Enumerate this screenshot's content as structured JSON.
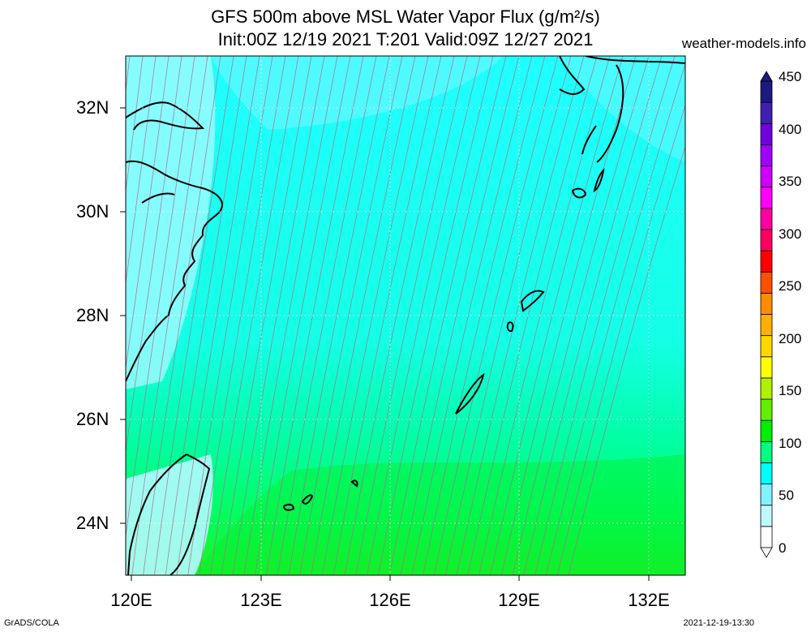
{
  "title": {
    "line1": "GFS 500m above MSL Water Vapor Flux (g/m²/s)",
    "line2": "Init:00Z 12/19 2021 T:201 Valid:09Z 12/27 2021"
  },
  "site": "weather-models.info",
  "axes": {
    "lat_labels": [
      "32N",
      "30N",
      "28N",
      "26N",
      "24N"
    ],
    "lon_labels": [
      "120E",
      "123E",
      "126E",
      "129E",
      "132E"
    ]
  },
  "colorbar": {
    "labels": [
      "450",
      "400",
      "350",
      "300",
      "250",
      "200",
      "150",
      "100",
      "50",
      "0"
    ],
    "colors": [
      "#fdfdff",
      "#c0f8ff",
      "#80f3ff",
      "#00ffff",
      "#00ff80",
      "#00f000",
      "#60f000",
      "#b0f000",
      "#ffff00",
      "#ffd700",
      "#ffb000",
      "#ff8c00",
      "#ff5000",
      "#ff0000",
      "#ff0060",
      "#ff00a0",
      "#ff00ff",
      "#d000ff",
      "#a000ff",
      "#7000e0",
      "#4020b0",
      "#1a1a80"
    ]
  },
  "footer": {
    "left": "GrADS/COLA",
    "right": "2021-12-19-13:30"
  }
}
